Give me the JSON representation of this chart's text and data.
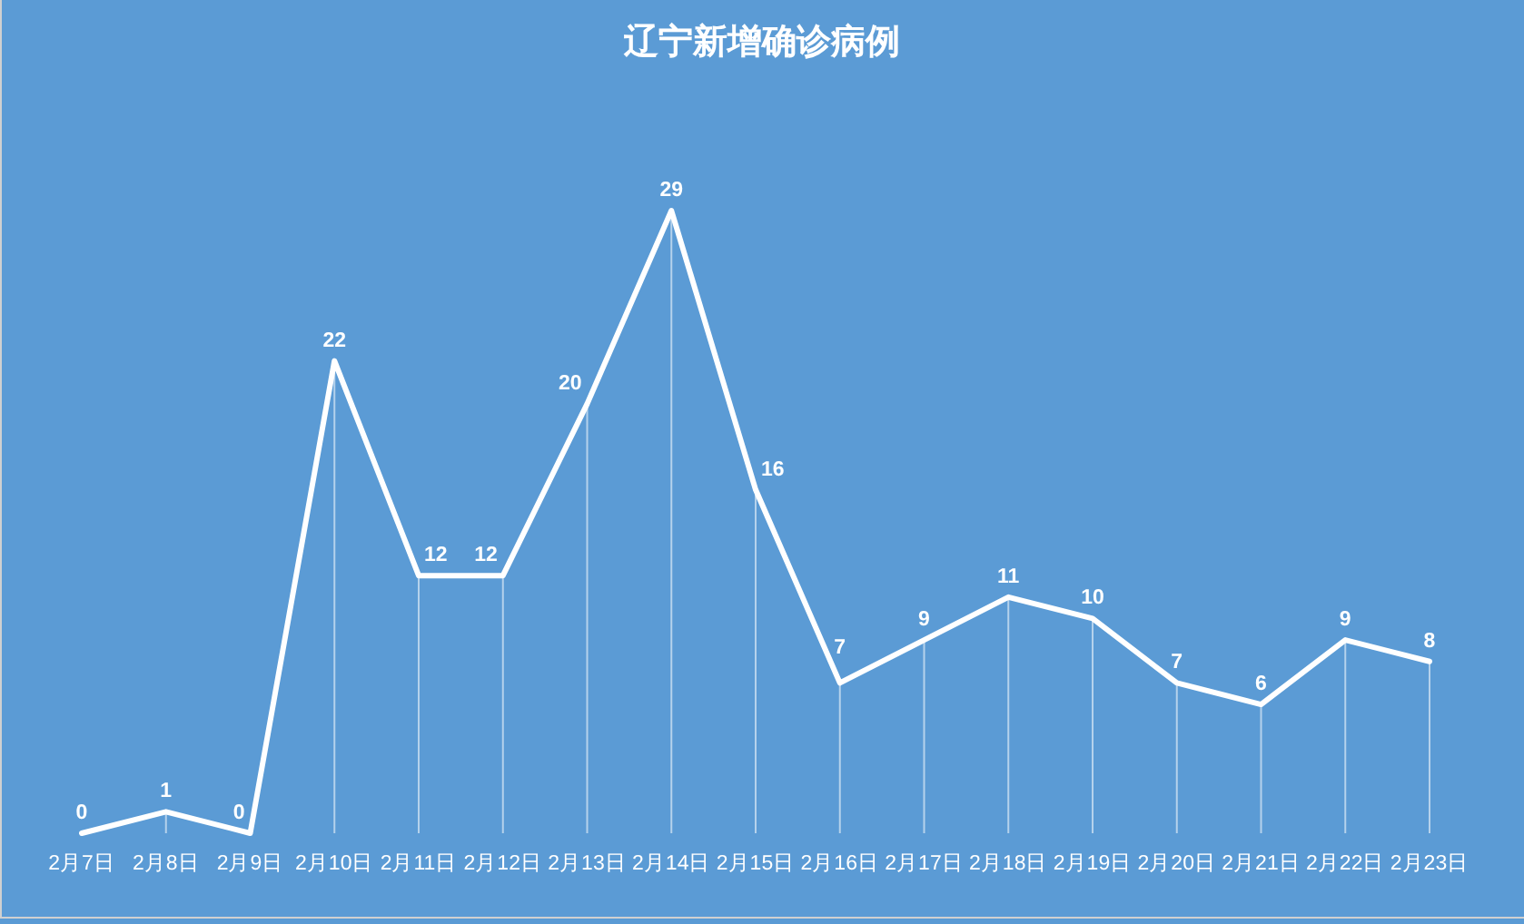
{
  "chart_data": {
    "type": "line",
    "title": "辽宁新增确诊病例",
    "categories": [
      "2月7日",
      "2月8日",
      "2月9日",
      "2月10日",
      "2月11日",
      "2月12日",
      "2月13日",
      "2月14日",
      "2月15日",
      "2月16日",
      "2月17日",
      "2月18日",
      "2月19日",
      "2月20日",
      "2月21日",
      "2月22日",
      "2月23日"
    ],
    "series": [
      {
        "color": "#ffffff",
        "values": [
          0,
          1,
          0,
          22,
          12,
          12,
          20,
          29,
          16,
          7,
          9,
          11,
          10,
          7,
          6,
          9,
          8
        ]
      }
    ],
    "data_labels": true
  }
}
